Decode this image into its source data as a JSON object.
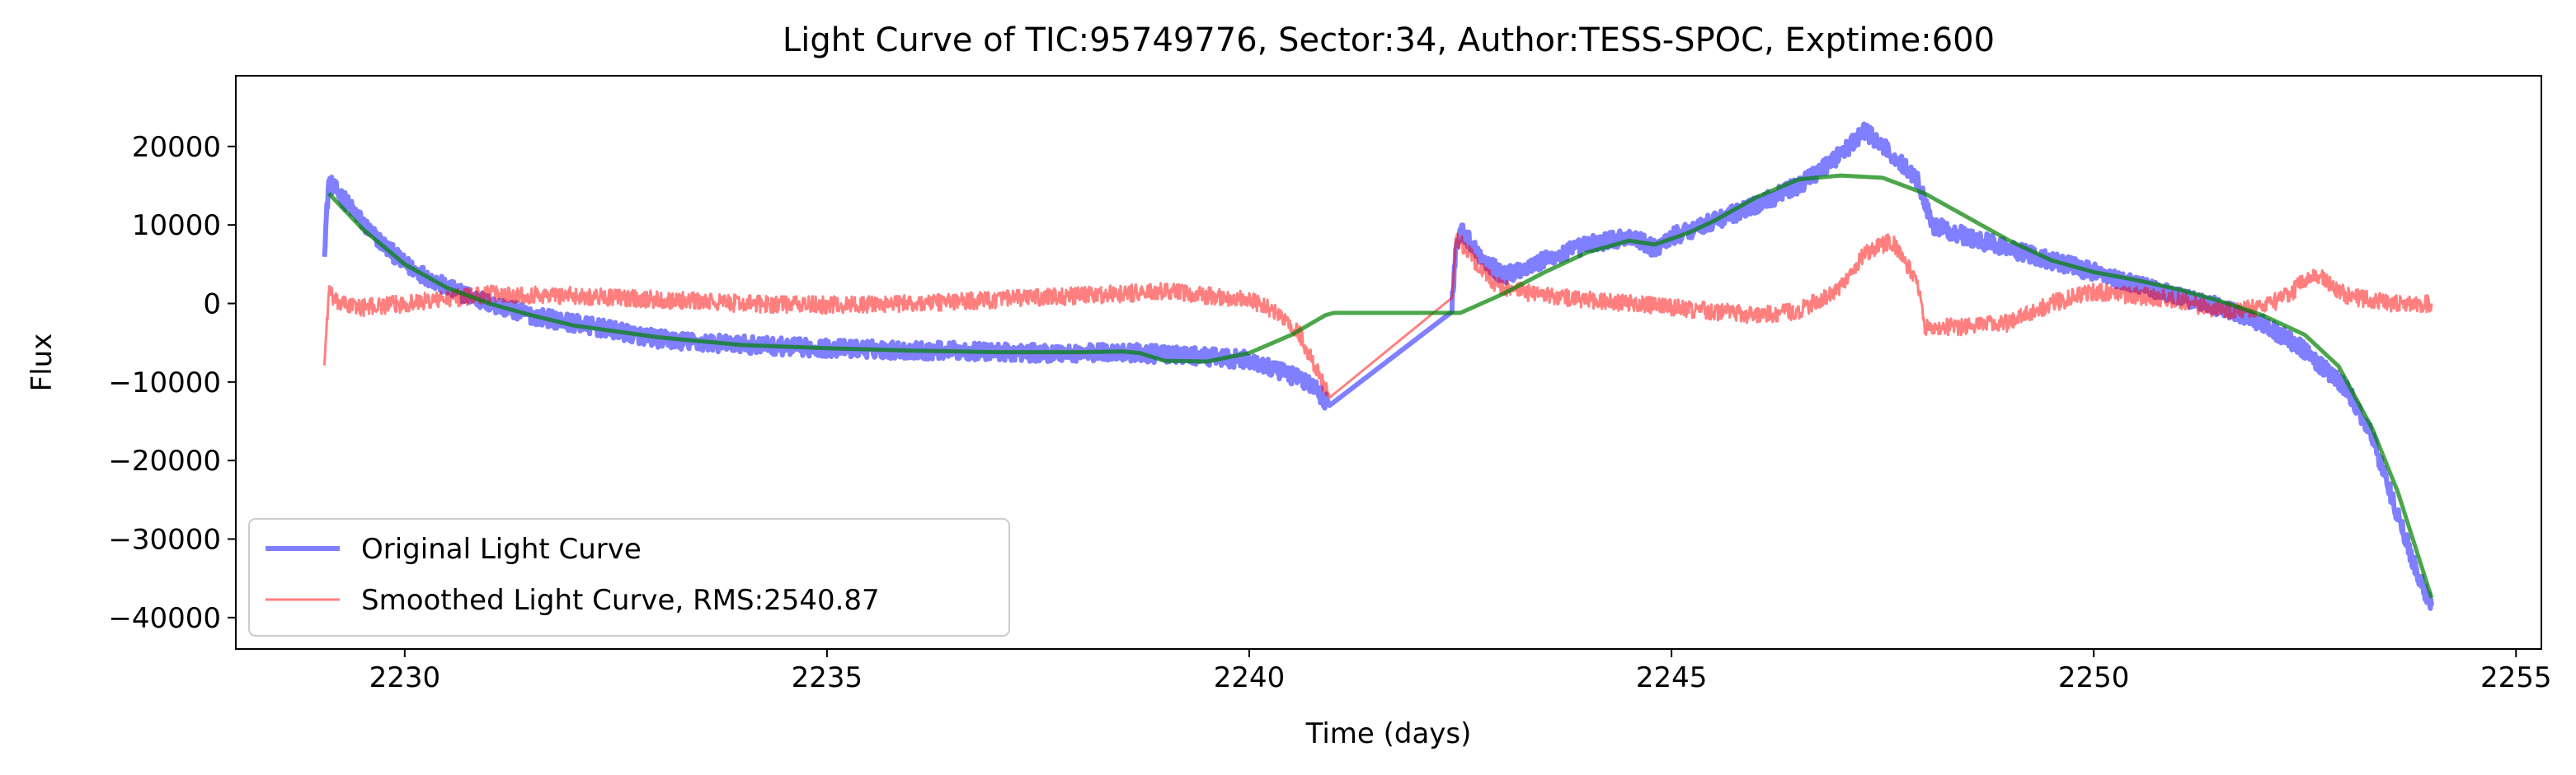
{
  "chart_data": {
    "type": "line",
    "title": "Light Curve of TIC:95749776, Sector:34, Author:TESS-SPOC, Exptime:600",
    "xlabel": "Time (days)",
    "ylabel": "Flux",
    "xlim": [
      2228.0,
      2255.3
    ],
    "ylim": [
      -44000,
      29000
    ],
    "x_ticks": [
      2230,
      2235,
      2240,
      2245,
      2250,
      2255
    ],
    "y_ticks": [
      -40000,
      -30000,
      -20000,
      -10000,
      0,
      10000,
      20000
    ],
    "x_tick_labels": [
      "2230",
      "2235",
      "2240",
      "2245",
      "2250",
      "2255"
    ],
    "y_tick_labels": [
      "−40000",
      "−30000",
      "−20000",
      "−10000",
      "0",
      "10000",
      "20000"
    ],
    "legend_position": "lower-left",
    "series": [
      {
        "name": "Original Light Curve",
        "color": "#0000ff",
        "opacity": 0.5,
        "x": [
          2229.05,
          2229.1,
          2229.3,
          2229.6,
          2230.0,
          2230.5,
          2231.0,
          2231.5,
          2232.0,
          2232.5,
          2233.0,
          2233.5,
          2234.0,
          2234.5,
          2235.0,
          2235.5,
          2236.0,
          2236.5,
          2237.0,
          2237.5,
          2238.0,
          2238.5,
          2239.0,
          2239.5,
          2240.0,
          2240.3,
          2240.6,
          2240.8,
          2240.95,
          2242.4,
          2242.45,
          2242.5,
          2242.7,
          2243.0,
          2243.5,
          2244.0,
          2244.5,
          2244.8,
          2245.0,
          2245.5,
          2246.0,
          2246.5,
          2247.0,
          2247.3,
          2247.6,
          2247.9,
          2248.1,
          2248.5,
          2249.0,
          2249.5,
          2250.0,
          2250.5,
          2251.0,
          2251.5,
          2252.0,
          2252.5,
          2253.0,
          2253.3,
          2253.6,
          2253.85,
          2254.0
        ],
        "y": [
          7000,
          15500,
          13000,
          9000,
          5000,
          2000,
          0,
          -1500,
          -2500,
          -3500,
          -4500,
          -5000,
          -5200,
          -5500,
          -5700,
          -5800,
          -6000,
          -6000,
          -6200,
          -6300,
          -6300,
          -6200,
          -6500,
          -6800,
          -7200,
          -8500,
          -9500,
          -11000,
          -13000,
          -500,
          7500,
          9500,
          6500,
          3500,
          5500,
          7500,
          8500,
          7000,
          8500,
          10500,
          12500,
          15000,
          19000,
          22000,
          19000,
          16000,
          10000,
          8500,
          7000,
          5500,
          4000,
          2500,
          1000,
          -500,
          -2500,
          -6000,
          -11000,
          -17000,
          -27000,
          -35000,
          -38500
        ],
        "noise_amplitude": 1100
      },
      {
        "name": "Smoothed Light Curve, RMS:2540.87",
        "color": "#ff0000",
        "opacity": 0.5,
        "x": [
          2229.05,
          2229.1,
          2229.2,
          2229.5,
          2230.0,
          2231.0,
          2232.0,
          2233.0,
          2234.0,
          2235.0,
          2236.0,
          2237.0,
          2238.0,
          2239.0,
          2239.5,
          2240.0,
          2240.3,
          2240.6,
          2240.95,
          2242.4,
          2242.45,
          2242.6,
          2242.8,
          2243.0,
          2243.5,
          2244.0,
          2244.5,
          2245.0,
          2245.5,
          2246.0,
          2246.5,
          2247.0,
          2247.3,
          2247.6,
          2247.9,
          2248.0,
          2248.5,
          2249.0,
          2249.5,
          2250.0,
          2250.5,
          2251.0,
          2251.5,
          2252.0,
          2252.3,
          2252.6,
          2253.0,
          2253.5,
          2254.0
        ],
        "y": [
          -7500,
          1500,
          0,
          -500,
          0,
          1200,
          1000,
          500,
          0,
          -200,
          0,
          500,
          1000,
          1500,
          1000,
          500,
          -1000,
          -4000,
          -12000,
          1500,
          8500,
          6500,
          3500,
          2000,
          1000,
          500,
          0,
          -500,
          -1000,
          -1500,
          -1000,
          2000,
          6500,
          8000,
          3000,
          -3000,
          -3000,
          -2500,
          0,
          1500,
          1000,
          500,
          -1000,
          -500,
          1000,
          4000,
          1000,
          0,
          0
        ],
        "noise_amplitude": 1100
      },
      {
        "color": "#008000",
        "opacity": 0.7,
        "x": [
          2229.1,
          2229.5,
          2230.0,
          2230.5,
          2231.0,
          2231.5,
          2232.0,
          2233.0,
          2234.0,
          2235.0,
          2236.0,
          2237.0,
          2238.0,
          2238.5,
          2238.7,
          2239.0,
          2239.5,
          2240.0,
          2240.5,
          2240.9,
          2241.0,
          2242.5,
          2243.0,
          2243.5,
          2244.0,
          2244.5,
          2244.8,
          2245.2,
          2245.5,
          2246.0,
          2246.5,
          2247.0,
          2247.5,
          2248.0,
          2248.5,
          2249.0,
          2249.5,
          2250.0,
          2250.5,
          2251.0,
          2251.5,
          2252.0,
          2252.5,
          2252.9,
          2253.3,
          2253.6,
          2254.0
        ],
        "y": [
          14000,
          9500,
          5000,
          2000,
          0,
          -1500,
          -2800,
          -4300,
          -5300,
          -5700,
          -6000,
          -6200,
          -6200,
          -6100,
          -6300,
          -7300,
          -7400,
          -6300,
          -4000,
          -1500,
          -1200,
          -1200,
          1200,
          4000,
          6500,
          8000,
          7500,
          9000,
          10500,
          13500,
          15800,
          16300,
          16000,
          14000,
          11000,
          8000,
          5500,
          4000,
          3000,
          1800,
          300,
          -1500,
          -4000,
          -8000,
          -16000,
          -24000,
          -37500
        ],
        "noise_amplitude": 0
      }
    ]
  }
}
